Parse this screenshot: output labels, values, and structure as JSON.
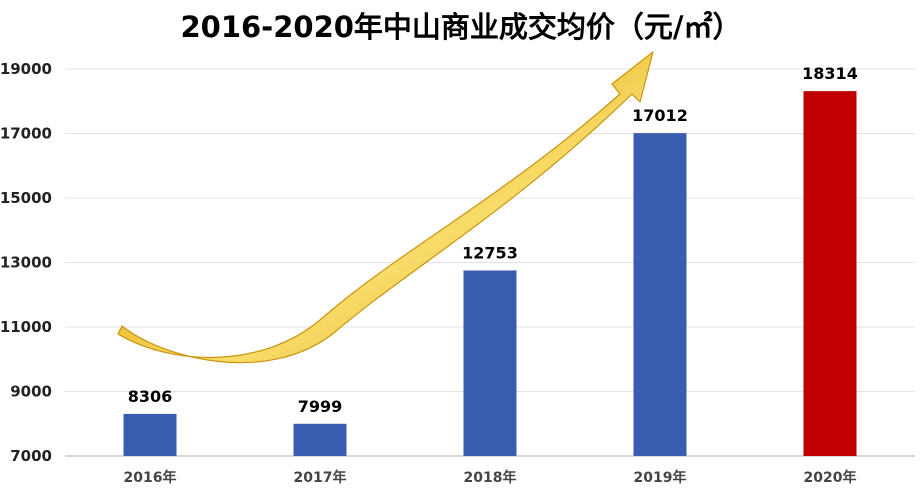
{
  "chart_data": {
    "type": "bar",
    "title": "2016-2020年中山商业成交均价（元/㎡）",
    "categories": [
      "2016年",
      "2017年",
      "2018年",
      "2019年",
      "2020年"
    ],
    "values": [
      8306,
      7999,
      12753,
      17012,
      18314
    ],
    "ylim": [
      7000,
      19000
    ],
    "yticks": [
      7000,
      9000,
      11000,
      13000,
      15000,
      17000,
      19000
    ],
    "grid": true,
    "bar_colors": [
      "#3a5cb0",
      "#3a5cb0",
      "#3a5cb0",
      "#3a5cb0",
      "#c00000"
    ],
    "decoration": "golden upward trend arrow"
  }
}
